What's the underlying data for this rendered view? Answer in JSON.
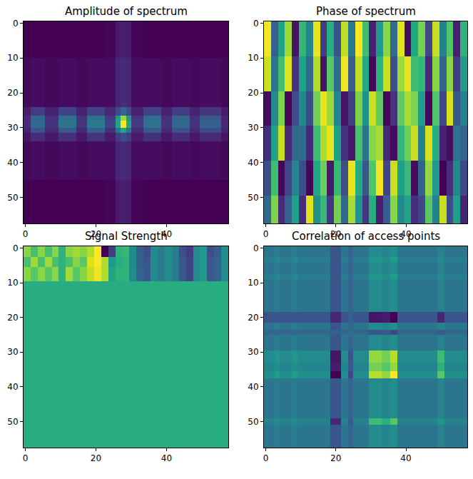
{
  "chart_data": [
    {
      "type": "heatmap",
      "title": "Amplitude of spectrum",
      "color": "Viridis",
      "x": [
        -0.5,
        1.5,
        5.5,
        9.5,
        14.5,
        17.5,
        22.5,
        25.5,
        27,
        28.5,
        30,
        33.5,
        38.5,
        41.5,
        46.5,
        49.5,
        55.5,
        57.5
      ],
      "y": [
        -0.5,
        10,
        24,
        26.5,
        28,
        30,
        31.5,
        34,
        45,
        57.5
      ],
      "z": [
        [
          0.03,
          0.03,
          0.03,
          0.03,
          0.03,
          0.03,
          0.04,
          0.1,
          0.12,
          0.1,
          0.04,
          0.03,
          0.03,
          0.03,
          0.03,
          0.03,
          0.03
        ],
        [
          0.05,
          0.06,
          0.05,
          0.06,
          0.05,
          0.06,
          0.06,
          0.13,
          0.15,
          0.13,
          0.06,
          0.06,
          0.05,
          0.06,
          0.05,
          0.06,
          0.05
        ],
        [
          0.1,
          0.2,
          0.12,
          0.22,
          0.12,
          0.22,
          0.14,
          0.25,
          0.35,
          0.25,
          0.12,
          0.22,
          0.12,
          0.2,
          0.12,
          0.18,
          0.1
        ],
        [
          0.14,
          0.35,
          0.16,
          0.38,
          0.17,
          0.4,
          0.2,
          0.55,
          0.85,
          0.55,
          0.18,
          0.38,
          0.16,
          0.35,
          0.16,
          0.3,
          0.13
        ],
        [
          0.15,
          0.36,
          0.17,
          0.4,
          0.18,
          0.42,
          0.22,
          0.6,
          1.0,
          0.6,
          0.19,
          0.4,
          0.17,
          0.36,
          0.17,
          0.32,
          0.14
        ],
        [
          0.12,
          0.28,
          0.14,
          0.3,
          0.14,
          0.32,
          0.16,
          0.4,
          0.6,
          0.4,
          0.15,
          0.3,
          0.14,
          0.28,
          0.14,
          0.25,
          0.12
        ],
        [
          0.08,
          0.15,
          0.09,
          0.16,
          0.09,
          0.17,
          0.1,
          0.2,
          0.25,
          0.2,
          0.1,
          0.16,
          0.09,
          0.15,
          0.09,
          0.14,
          0.08
        ],
        [
          0.05,
          0.06,
          0.05,
          0.06,
          0.05,
          0.06,
          0.06,
          0.13,
          0.15,
          0.13,
          0.06,
          0.06,
          0.05,
          0.06,
          0.05,
          0.06,
          0.05
        ],
        [
          0.03,
          0.03,
          0.03,
          0.03,
          0.03,
          0.03,
          0.04,
          0.1,
          0.12,
          0.1,
          0.04,
          0.03,
          0.03,
          0.03,
          0.03,
          0.03,
          0.03
        ]
      ],
      "xlim": [
        -0.5,
        57.5
      ],
      "ylim": [
        57.5,
        -0.5
      ],
      "xticks": [
        0,
        20,
        40
      ],
      "yticks": [
        0,
        10,
        20,
        30,
        40,
        50
      ]
    },
    {
      "type": "heatmap",
      "title": "Phase of spectrum",
      "color": "Viridis",
      "x": [
        -0.5,
        1.5,
        3.5,
        5.5,
        7.5,
        9.5,
        11.5,
        13.5,
        15.5,
        17.5,
        19.5,
        21.5,
        23.5,
        25.5,
        27.5,
        29.5,
        31.5,
        33.5,
        35.5,
        37.5,
        39.5,
        41.5,
        43.5,
        45.5,
        47.5,
        49.5,
        51.5,
        53.5,
        55.5,
        57.5
      ],
      "y": [
        -0.5,
        9.5,
        19.5,
        29.5,
        39.5,
        49.5,
        57.5
      ],
      "z": [
        [
          3.0,
          -1.2,
          0.5,
          2.2,
          -2.8,
          1.0,
          -0.3,
          2.9,
          -2.0,
          0.8,
          -1.5,
          2.5,
          -0.6,
          3.1,
          1.2,
          -2.5,
          0.2,
          2.0,
          -1.0,
          2.8,
          -2.9,
          0.6,
          1.8,
          -1.8,
          2.6,
          -0.4,
          1.4,
          -2.6,
          0.9
        ],
        [
          2.6,
          -0.8,
          1.2,
          2.8,
          -2.2,
          0.4,
          -1.0,
          2.4,
          -2.8,
          1.5,
          -0.9,
          3.0,
          -1.3,
          2.5,
          0.6,
          -3.0,
          0.9,
          2.6,
          -1.6,
          2.2,
          2.9,
          1.2,
          1.0,
          -2.4,
          2.0,
          -1.1,
          2.0,
          -2.0,
          0.3
        ],
        [
          -2.9,
          -0.2,
          1.9,
          -3.0,
          -1.6,
          -0.2,
          -1.7,
          1.8,
          2.9,
          2.2,
          -0.3,
          -2.8,
          -2.0,
          1.9,
          0.0,
          2.6,
          1.6,
          -3.0,
          -2.2,
          1.6,
          2.3,
          1.9,
          0.3,
          -3.0,
          1.4,
          -1.8,
          2.7,
          -1.4,
          -0.4
        ],
        [
          -2.3,
          0.5,
          2.6,
          -2.4,
          -1.0,
          -0.9,
          -2.4,
          1.2,
          2.3,
          2.9,
          0.4,
          -2.2,
          -2.7,
          1.3,
          -0.7,
          2.0,
          2.3,
          -2.4,
          -2.9,
          1.0,
          1.7,
          2.6,
          -0.4,
          2.7,
          0.8,
          -2.5,
          -2.9,
          -0.8,
          -1.1
        ],
        [
          -1.6,
          1.2,
          -3.0,
          -1.8,
          -0.3,
          -1.6,
          -3.0,
          0.6,
          1.7,
          -2.7,
          1.1,
          -1.6,
          2.9,
          0.7,
          -1.4,
          1.4,
          3.0,
          -1.8,
          2.6,
          0.4,
          1.1,
          -2.9,
          -1.1,
          2.1,
          0.2,
          -3.1,
          -2.3,
          -0.2,
          -1.8
        ],
        [
          -1.0,
          1.9,
          -2.4,
          -1.2,
          0.4,
          -2.3,
          2.8,
          0.0,
          1.1,
          -2.1,
          1.8,
          -1.0,
          2.3,
          0.1,
          -2.1,
          0.8,
          -2.6,
          -1.2,
          2.0,
          -0.2,
          0.5,
          -2.3,
          -1.8,
          1.5,
          -0.4,
          2.6,
          -1.7,
          0.4,
          -2.5
        ]
      ],
      "xlim": [
        -0.5,
        57.5
      ],
      "ylim": [
        57.5,
        -0.5
      ],
      "xticks": [
        0,
        20,
        40
      ],
      "yticks": [
        0,
        10,
        20,
        30,
        40,
        50
      ]
    },
    {
      "type": "heatmap",
      "title": "Signal Strength",
      "color": "Viridis",
      "x": [
        -0.5,
        1.5,
        3.5,
        5.5,
        7.5,
        9.5,
        11.5,
        13.5,
        15.5,
        17.5,
        19.5,
        21.5,
        23.5,
        25.5,
        27.5,
        29.5,
        31.5,
        33.5,
        35.5,
        37.5,
        39.5,
        41.5,
        43.5,
        45.5,
        47.5,
        49.5,
        51.5,
        53.5,
        55.5,
        57.5
      ],
      "y": [
        -0.5,
        2.5,
        5.5,
        9.5,
        57.5
      ],
      "z": [
        [
          0.85,
          0.75,
          0.85,
          0.75,
          0.85,
          0.7,
          0.85,
          0.88,
          0.85,
          0.9,
          1.0,
          0.15,
          0.3,
          0.7,
          0.72,
          0.55,
          0.4,
          0.35,
          0.55,
          0.5,
          0.55,
          0.5,
          0.35,
          0.3,
          0.55,
          0.6,
          0.35,
          0.4,
          0.55
        ],
        [
          0.75,
          0.88,
          0.75,
          0.88,
          0.75,
          0.7,
          0.75,
          0.85,
          0.78,
          0.95,
          1.0,
          0.9,
          0.6,
          0.68,
          0.7,
          0.55,
          0.4,
          0.38,
          0.55,
          0.5,
          0.55,
          0.5,
          0.38,
          0.32,
          0.55,
          0.6,
          0.38,
          0.42,
          0.55
        ],
        [
          0.85,
          0.78,
          0.85,
          0.78,
          0.85,
          0.7,
          0.88,
          0.78,
          0.85,
          0.92,
          0.98,
          0.9,
          0.65,
          0.7,
          0.7,
          0.55,
          0.42,
          0.38,
          0.55,
          0.5,
          0.55,
          0.5,
          0.38,
          0.32,
          0.55,
          0.6,
          0.38,
          0.42,
          0.55
        ],
        [
          0.68,
          0.68,
          0.68,
          0.68,
          0.68,
          0.68,
          0.68,
          0.68,
          0.68,
          0.68,
          0.68,
          0.68,
          0.68,
          0.68,
          0.68,
          0.68,
          0.68,
          0.68,
          0.68,
          0.68,
          0.68,
          0.68,
          0.68,
          0.68,
          0.68,
          0.68,
          0.68,
          0.68,
          0.68
        ]
      ],
      "xlim": [
        -0.5,
        57.5
      ],
      "ylim": [
        57.5,
        -0.5
      ],
      "xticks": [
        0,
        20,
        40
      ],
      "yticks": [
        0,
        10,
        20,
        30,
        40,
        50
      ]
    },
    {
      "type": "heatmap",
      "title": "Correlation of access points",
      "color": "Viridis",
      "x": [
        -0.5,
        2.5,
        4,
        7.5,
        9,
        18.5,
        21.5,
        23.5,
        25,
        29.5,
        33,
        35.5,
        37.5,
        49,
        51,
        57.5
      ],
      "y": [
        -0.5,
        2.5,
        4,
        7.5,
        9,
        18.5,
        21.5,
        23.5,
        25,
        29.5,
        33,
        35.5,
        37.5,
        49,
        51,
        57.5
      ],
      "z": [
        [
          0.42,
          0.45,
          0.42,
          0.45,
          0.42,
          0.3,
          0.42,
          0.36,
          0.42,
          0.5,
          0.48,
          0.52,
          0.42,
          0.47,
          0.42
        ],
        [
          0.45,
          0.5,
          0.45,
          0.5,
          0.45,
          0.3,
          0.45,
          0.38,
          0.45,
          0.55,
          0.52,
          0.58,
          0.45,
          0.5,
          0.45
        ],
        [
          0.42,
          0.45,
          0.42,
          0.45,
          0.42,
          0.3,
          0.42,
          0.36,
          0.42,
          0.5,
          0.48,
          0.52,
          0.42,
          0.47,
          0.42
        ],
        [
          0.45,
          0.5,
          0.45,
          0.5,
          0.45,
          0.3,
          0.45,
          0.38,
          0.45,
          0.55,
          0.52,
          0.58,
          0.45,
          0.5,
          0.45
        ],
        [
          0.42,
          0.45,
          0.42,
          0.45,
          0.42,
          0.3,
          0.42,
          0.36,
          0.42,
          0.5,
          0.48,
          0.52,
          0.42,
          0.47,
          0.42
        ],
        [
          0.3,
          0.3,
          0.3,
          0.3,
          0.3,
          0.15,
          0.3,
          0.35,
          0.3,
          0.1,
          0.12,
          0.05,
          0.3,
          0.15,
          0.3
        ],
        [
          0.42,
          0.45,
          0.42,
          0.45,
          0.42,
          0.3,
          0.42,
          0.36,
          0.42,
          0.5,
          0.48,
          0.52,
          0.42,
          0.47,
          0.42
        ],
        [
          0.36,
          0.38,
          0.36,
          0.38,
          0.36,
          0.35,
          0.36,
          0.4,
          0.36,
          0.3,
          0.32,
          0.25,
          0.36,
          0.32,
          0.36
        ],
        [
          0.42,
          0.45,
          0.42,
          0.45,
          0.42,
          0.3,
          0.42,
          0.36,
          0.42,
          0.5,
          0.48,
          0.52,
          0.42,
          0.47,
          0.42
        ],
        [
          0.5,
          0.55,
          0.5,
          0.55,
          0.5,
          0.1,
          0.5,
          0.3,
          0.5,
          0.85,
          0.8,
          0.9,
          0.5,
          0.7,
          0.5
        ],
        [
          0.48,
          0.52,
          0.48,
          0.52,
          0.48,
          0.12,
          0.48,
          0.32,
          0.48,
          0.8,
          0.75,
          0.85,
          0.48,
          0.65,
          0.48
        ],
        [
          0.52,
          0.58,
          0.52,
          0.58,
          0.52,
          0.05,
          0.52,
          0.25,
          0.52,
          0.9,
          0.85,
          1.0,
          0.52,
          0.75,
          0.52
        ],
        [
          0.42,
          0.45,
          0.42,
          0.45,
          0.42,
          0.3,
          0.42,
          0.36,
          0.42,
          0.5,
          0.48,
          0.52,
          0.42,
          0.47,
          0.42
        ],
        [
          0.47,
          0.5,
          0.47,
          0.5,
          0.47,
          0.15,
          0.47,
          0.32,
          0.47,
          0.7,
          0.65,
          0.75,
          0.47,
          0.55,
          0.47
        ],
        [
          0.42,
          0.45,
          0.42,
          0.45,
          0.42,
          0.3,
          0.42,
          0.36,
          0.42,
          0.5,
          0.48,
          0.52,
          0.42,
          0.47,
          0.42
        ]
      ],
      "xlim": [
        -0.5,
        57.5
      ],
      "ylim": [
        57.5,
        -0.5
      ],
      "xticks": [
        0,
        20,
        40
      ],
      "yticks": [
        0,
        10,
        20,
        30,
        40,
        50
      ]
    }
  ]
}
